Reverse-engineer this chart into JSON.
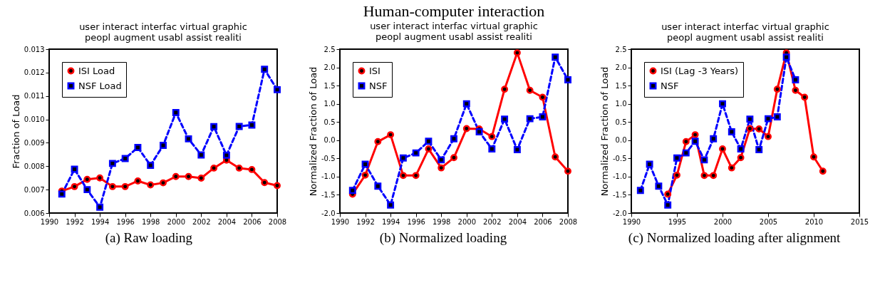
{
  "chart_data": [
    {
      "type": "line",
      "subtitle": [
        "user interact interfac virtual graphic",
        "peopl augment usabl assist realiti"
      ],
      "ylabel": "Fraction of Load",
      "annotations": [
        "(a) Raw loading"
      ],
      "x": [
        1991,
        1992,
        1993,
        1994,
        1995,
        1996,
        1997,
        1998,
        1999,
        2000,
        2001,
        2002,
        2003,
        2004,
        2005,
        2006,
        2007,
        2008
      ],
      "series": [
        {
          "name": "ISI Load",
          "color": "#ff0000",
          "line_style": "solid",
          "marker": "circle",
          "values": [
            0.00694,
            0.00713,
            0.00744,
            0.0075,
            0.00713,
            0.00713,
            0.00737,
            0.0072,
            0.00729,
            0.00756,
            0.00756,
            0.00749,
            0.00792,
            0.00826,
            0.00792,
            0.00786,
            0.0073,
            0.00717
          ]
        },
        {
          "name": "NSF Load",
          "color": "#0000ff",
          "line_style": "dashed",
          "marker": "square",
          "values": [
            0.00681,
            0.00787,
            0.007,
            0.00625,
            0.00812,
            0.00833,
            0.0088,
            0.00804,
            0.00889,
            0.01029,
            0.00917,
            0.00848,
            0.00969,
            0.00847,
            0.0097,
            0.00976,
            0.01214,
            0.01127
          ]
        }
      ],
      "xlim": [
        1990,
        2008
      ],
      "xticks": [
        1990,
        1992,
        1994,
        1996,
        1998,
        2000,
        2002,
        2004,
        2006,
        2008
      ],
      "ylim": [
        0.006,
        0.013
      ],
      "yticks": [
        {
          "value": 0.006,
          "label": "0.006"
        },
        {
          "value": 0.007,
          "label": "0.007"
        },
        {
          "value": 0.008,
          "label": "0.008"
        },
        {
          "value": 0.009,
          "label": "0.009"
        },
        {
          "value": 0.01,
          "label": "0.010"
        },
        {
          "value": 0.011,
          "label": "0.011"
        },
        {
          "value": 0.012,
          "label": "0.012"
        },
        {
          "value": 0.013,
          "label": "0.013"
        }
      ],
      "legend": "top left",
      "grid": false
    },
    {
      "type": "line",
      "title": "Human-computer interaction",
      "subtitle": [
        "user interact interfac virtual graphic",
        "peopl augment usabl assist realiti"
      ],
      "ylabel": "Normalized Fraction of Load",
      "annotations": [
        "(b) Normalized loading"
      ],
      "x": [
        1991,
        1992,
        1993,
        1994,
        1995,
        1996,
        1997,
        1998,
        1999,
        2000,
        2001,
        2002,
        2003,
        2004,
        2005,
        2006,
        2007,
        2008
      ],
      "series": [
        {
          "name": "ISI",
          "color": "#ff0000",
          "line_style": "solid",
          "marker": "circle",
          "values": [
            -1.48,
            -0.96,
            -0.04,
            0.15,
            -0.97,
            -0.97,
            -0.24,
            -0.76,
            -0.48,
            0.32,
            0.31,
            0.1,
            1.4,
            2.4,
            1.37,
            1.18,
            -0.46,
            -0.85
          ]
        },
        {
          "name": "NSF",
          "color": "#0000ff",
          "line_style": "dashed",
          "marker": "square",
          "values": [
            -1.38,
            -0.66,
            -1.26,
            -1.78,
            -0.49,
            -0.35,
            -0.03,
            -0.54,
            0.04,
            1.0,
            0.23,
            -0.24,
            0.58,
            -0.26,
            0.59,
            0.64,
            2.28,
            1.66
          ]
        }
      ],
      "xlim": [
        1990,
        2008
      ],
      "xticks": [
        1990,
        1992,
        1994,
        1996,
        1998,
        2000,
        2002,
        2004,
        2006,
        2008
      ],
      "ylim": [
        -2,
        2.5
      ],
      "yticks": [
        {
          "value": -2,
          "label": "-2.0"
        },
        {
          "value": -1.5,
          "label": "-1.5"
        },
        {
          "value": -1,
          "label": "-1.0"
        },
        {
          "value": -0.5,
          "label": "-0.5"
        },
        {
          "value": 0,
          "label": "0.0"
        },
        {
          "value": 0.5,
          "label": "0.5"
        },
        {
          "value": 1,
          "label": "1.0"
        },
        {
          "value": 1.5,
          "label": "1.5"
        },
        {
          "value": 2,
          "label": "2.0"
        },
        {
          "value": 2.5,
          "label": "2.5"
        }
      ],
      "legend": "top left",
      "grid": false
    },
    {
      "type": "line",
      "subtitle": [
        "user interact interfac virtual graphic",
        "peopl augment usabl assist realiti"
      ],
      "ylabel": "Normalized Fraction of Load",
      "annotations": [
        "(c) Normalized loading after alignment"
      ],
      "series": [
        {
          "name": "ISI (Lag -3 Years)",
          "color": "#ff0000",
          "line_style": "solid",
          "marker": "circle",
          "x": [
            1994,
            1995,
            1996,
            1997,
            1998,
            1999,
            2000,
            2001,
            2002,
            2003,
            2004,
            2005,
            2006,
            2007,
            2008,
            2009,
            2010,
            2011
          ],
          "values": [
            -1.48,
            -0.96,
            -0.04,
            0.15,
            -0.97,
            -0.97,
            -0.24,
            -0.76,
            -0.48,
            0.32,
            0.31,
            0.1,
            1.4,
            2.4,
            1.37,
            1.18,
            -0.46,
            -0.85
          ]
        },
        {
          "name": "NSF",
          "color": "#0000ff",
          "line_style": "dashed",
          "marker": "square",
          "x": [
            1991,
            1992,
            1993,
            1994,
            1995,
            1996,
            1997,
            1998,
            1999,
            2000,
            2001,
            2002,
            2003,
            2004,
            2005,
            2006,
            2007,
            2008
          ],
          "values": [
            -1.38,
            -0.66,
            -1.26,
            -1.78,
            -0.49,
            -0.35,
            -0.03,
            -0.54,
            0.04,
            1.0,
            0.23,
            -0.24,
            0.58,
            -0.26,
            0.59,
            0.64,
            2.28,
            1.66
          ]
        }
      ],
      "xlim": [
        1990,
        2015
      ],
      "xticks": [
        1990,
        1995,
        2000,
        2005,
        2010,
        2015
      ],
      "ylim": [
        -2,
        2.5
      ],
      "yticks": [
        {
          "value": -2,
          "label": "-2.0"
        },
        {
          "value": -1.5,
          "label": "-1.5"
        },
        {
          "value": -1,
          "label": "-1.0"
        },
        {
          "value": -0.5,
          "label": "-0.5"
        },
        {
          "value": 0,
          "label": "0.0"
        },
        {
          "value": 0.5,
          "label": "0.5"
        },
        {
          "value": 1,
          "label": "1.0"
        },
        {
          "value": 1.5,
          "label": "1.5"
        },
        {
          "value": 2,
          "label": "2.0"
        },
        {
          "value": 2.5,
          "label": "2.5"
        }
      ],
      "legend": "top left",
      "grid": false
    }
  ]
}
